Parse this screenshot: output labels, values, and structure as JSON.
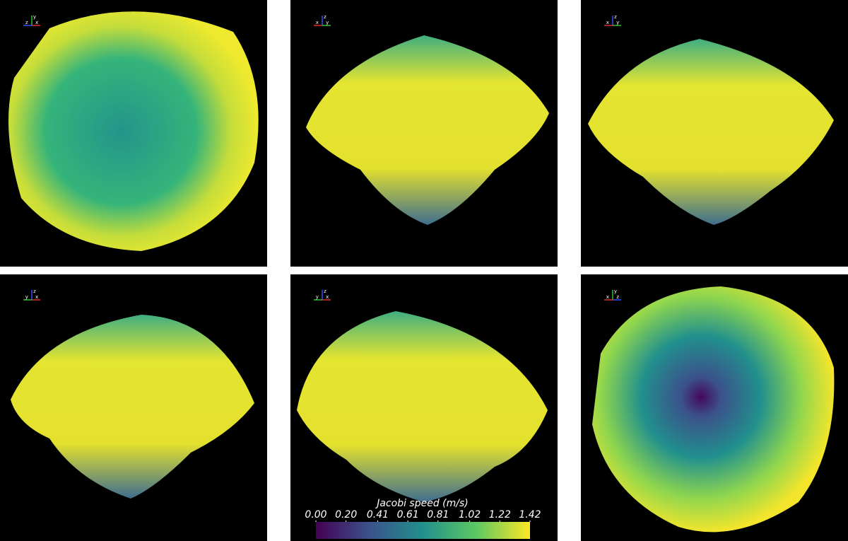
{
  "panels": [
    {
      "axes": [
        "y",
        "z",
        "x"
      ]
    },
    {
      "axes": [
        "z",
        "x",
        "y"
      ]
    },
    {
      "axes": [
        "z",
        "x",
        "y"
      ]
    },
    {
      "axes": [
        "z",
        "y",
        "x"
      ]
    },
    {
      "axes": [
        "z",
        "y",
        "x"
      ]
    },
    {
      "axes": [
        "y",
        "x",
        "z"
      ]
    }
  ],
  "colorbar": {
    "title": "Jacobi speed (m/s)",
    "range": [
      0,
      1.42
    ],
    "colors": [
      "#440154",
      "#3b528b",
      "#21908d",
      "#5dc962",
      "#fde725"
    ],
    "ticks": [
      {
        "value": 0,
        "label": "0.00"
      },
      {
        "value": 0.2,
        "label": "0.20"
      },
      {
        "value": 0.41,
        "label": "0.41"
      },
      {
        "value": 0.61,
        "label": "0.61"
      },
      {
        "value": 0.81,
        "label": "0.81"
      },
      {
        "value": 1.02,
        "label": "1.02"
      },
      {
        "value": 1.22,
        "label": "1.22"
      },
      {
        "value": 1.42,
        "label": "1.42"
      }
    ]
  }
}
